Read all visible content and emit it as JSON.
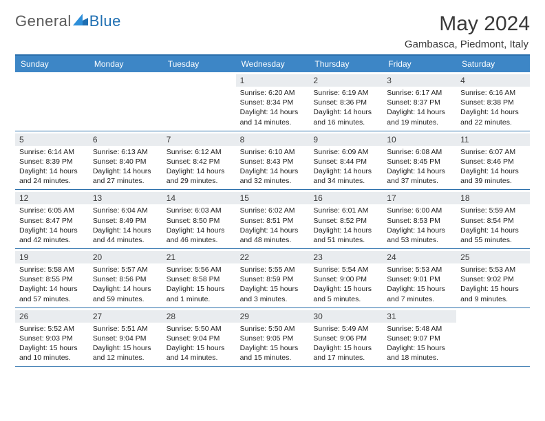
{
  "logo": {
    "text_general": "General",
    "text_blue": "Blue"
  },
  "title": "May 2024",
  "location": "Gambasca, Piedmont, Italy",
  "colors": {
    "header_bg": "#3d86c6",
    "header_border": "#2b6fab",
    "daynum_bg": "#e9ecef",
    "text": "#3a3a3a",
    "logo_gray": "#5a5a5a",
    "logo_blue": "#1f6fb2"
  },
  "weekdays": [
    "Sunday",
    "Monday",
    "Tuesday",
    "Wednesday",
    "Thursday",
    "Friday",
    "Saturday"
  ],
  "weeks": [
    [
      {
        "day": "",
        "sunrise": "",
        "sunset": "",
        "daylight": ""
      },
      {
        "day": "",
        "sunrise": "",
        "sunset": "",
        "daylight": ""
      },
      {
        "day": "",
        "sunrise": "",
        "sunset": "",
        "daylight": ""
      },
      {
        "day": "1",
        "sunrise": "Sunrise: 6:20 AM",
        "sunset": "Sunset: 8:34 PM",
        "daylight": "Daylight: 14 hours and 14 minutes."
      },
      {
        "day": "2",
        "sunrise": "Sunrise: 6:19 AM",
        "sunset": "Sunset: 8:36 PM",
        "daylight": "Daylight: 14 hours and 16 minutes."
      },
      {
        "day": "3",
        "sunrise": "Sunrise: 6:17 AM",
        "sunset": "Sunset: 8:37 PM",
        "daylight": "Daylight: 14 hours and 19 minutes."
      },
      {
        "day": "4",
        "sunrise": "Sunrise: 6:16 AM",
        "sunset": "Sunset: 8:38 PM",
        "daylight": "Daylight: 14 hours and 22 minutes."
      }
    ],
    [
      {
        "day": "5",
        "sunrise": "Sunrise: 6:14 AM",
        "sunset": "Sunset: 8:39 PM",
        "daylight": "Daylight: 14 hours and 24 minutes."
      },
      {
        "day": "6",
        "sunrise": "Sunrise: 6:13 AM",
        "sunset": "Sunset: 8:40 PM",
        "daylight": "Daylight: 14 hours and 27 minutes."
      },
      {
        "day": "7",
        "sunrise": "Sunrise: 6:12 AM",
        "sunset": "Sunset: 8:42 PM",
        "daylight": "Daylight: 14 hours and 29 minutes."
      },
      {
        "day": "8",
        "sunrise": "Sunrise: 6:10 AM",
        "sunset": "Sunset: 8:43 PM",
        "daylight": "Daylight: 14 hours and 32 minutes."
      },
      {
        "day": "9",
        "sunrise": "Sunrise: 6:09 AM",
        "sunset": "Sunset: 8:44 PM",
        "daylight": "Daylight: 14 hours and 34 minutes."
      },
      {
        "day": "10",
        "sunrise": "Sunrise: 6:08 AM",
        "sunset": "Sunset: 8:45 PM",
        "daylight": "Daylight: 14 hours and 37 minutes."
      },
      {
        "day": "11",
        "sunrise": "Sunrise: 6:07 AM",
        "sunset": "Sunset: 8:46 PM",
        "daylight": "Daylight: 14 hours and 39 minutes."
      }
    ],
    [
      {
        "day": "12",
        "sunrise": "Sunrise: 6:05 AM",
        "sunset": "Sunset: 8:47 PM",
        "daylight": "Daylight: 14 hours and 42 minutes."
      },
      {
        "day": "13",
        "sunrise": "Sunrise: 6:04 AM",
        "sunset": "Sunset: 8:49 PM",
        "daylight": "Daylight: 14 hours and 44 minutes."
      },
      {
        "day": "14",
        "sunrise": "Sunrise: 6:03 AM",
        "sunset": "Sunset: 8:50 PM",
        "daylight": "Daylight: 14 hours and 46 minutes."
      },
      {
        "day": "15",
        "sunrise": "Sunrise: 6:02 AM",
        "sunset": "Sunset: 8:51 PM",
        "daylight": "Daylight: 14 hours and 48 minutes."
      },
      {
        "day": "16",
        "sunrise": "Sunrise: 6:01 AM",
        "sunset": "Sunset: 8:52 PM",
        "daylight": "Daylight: 14 hours and 51 minutes."
      },
      {
        "day": "17",
        "sunrise": "Sunrise: 6:00 AM",
        "sunset": "Sunset: 8:53 PM",
        "daylight": "Daylight: 14 hours and 53 minutes."
      },
      {
        "day": "18",
        "sunrise": "Sunrise: 5:59 AM",
        "sunset": "Sunset: 8:54 PM",
        "daylight": "Daylight: 14 hours and 55 minutes."
      }
    ],
    [
      {
        "day": "19",
        "sunrise": "Sunrise: 5:58 AM",
        "sunset": "Sunset: 8:55 PM",
        "daylight": "Daylight: 14 hours and 57 minutes."
      },
      {
        "day": "20",
        "sunrise": "Sunrise: 5:57 AM",
        "sunset": "Sunset: 8:56 PM",
        "daylight": "Daylight: 14 hours and 59 minutes."
      },
      {
        "day": "21",
        "sunrise": "Sunrise: 5:56 AM",
        "sunset": "Sunset: 8:58 PM",
        "daylight": "Daylight: 15 hours and 1 minute."
      },
      {
        "day": "22",
        "sunrise": "Sunrise: 5:55 AM",
        "sunset": "Sunset: 8:59 PM",
        "daylight": "Daylight: 15 hours and 3 minutes."
      },
      {
        "day": "23",
        "sunrise": "Sunrise: 5:54 AM",
        "sunset": "Sunset: 9:00 PM",
        "daylight": "Daylight: 15 hours and 5 minutes."
      },
      {
        "day": "24",
        "sunrise": "Sunrise: 5:53 AM",
        "sunset": "Sunset: 9:01 PM",
        "daylight": "Daylight: 15 hours and 7 minutes."
      },
      {
        "day": "25",
        "sunrise": "Sunrise: 5:53 AM",
        "sunset": "Sunset: 9:02 PM",
        "daylight": "Daylight: 15 hours and 9 minutes."
      }
    ],
    [
      {
        "day": "26",
        "sunrise": "Sunrise: 5:52 AM",
        "sunset": "Sunset: 9:03 PM",
        "daylight": "Daylight: 15 hours and 10 minutes."
      },
      {
        "day": "27",
        "sunrise": "Sunrise: 5:51 AM",
        "sunset": "Sunset: 9:04 PM",
        "daylight": "Daylight: 15 hours and 12 minutes."
      },
      {
        "day": "28",
        "sunrise": "Sunrise: 5:50 AM",
        "sunset": "Sunset: 9:04 PM",
        "daylight": "Daylight: 15 hours and 14 minutes."
      },
      {
        "day": "29",
        "sunrise": "Sunrise: 5:50 AM",
        "sunset": "Sunset: 9:05 PM",
        "daylight": "Daylight: 15 hours and 15 minutes."
      },
      {
        "day": "30",
        "sunrise": "Sunrise: 5:49 AM",
        "sunset": "Sunset: 9:06 PM",
        "daylight": "Daylight: 15 hours and 17 minutes."
      },
      {
        "day": "31",
        "sunrise": "Sunrise: 5:48 AM",
        "sunset": "Sunset: 9:07 PM",
        "daylight": "Daylight: 15 hours and 18 minutes."
      },
      {
        "day": "",
        "sunrise": "",
        "sunset": "",
        "daylight": ""
      }
    ]
  ]
}
